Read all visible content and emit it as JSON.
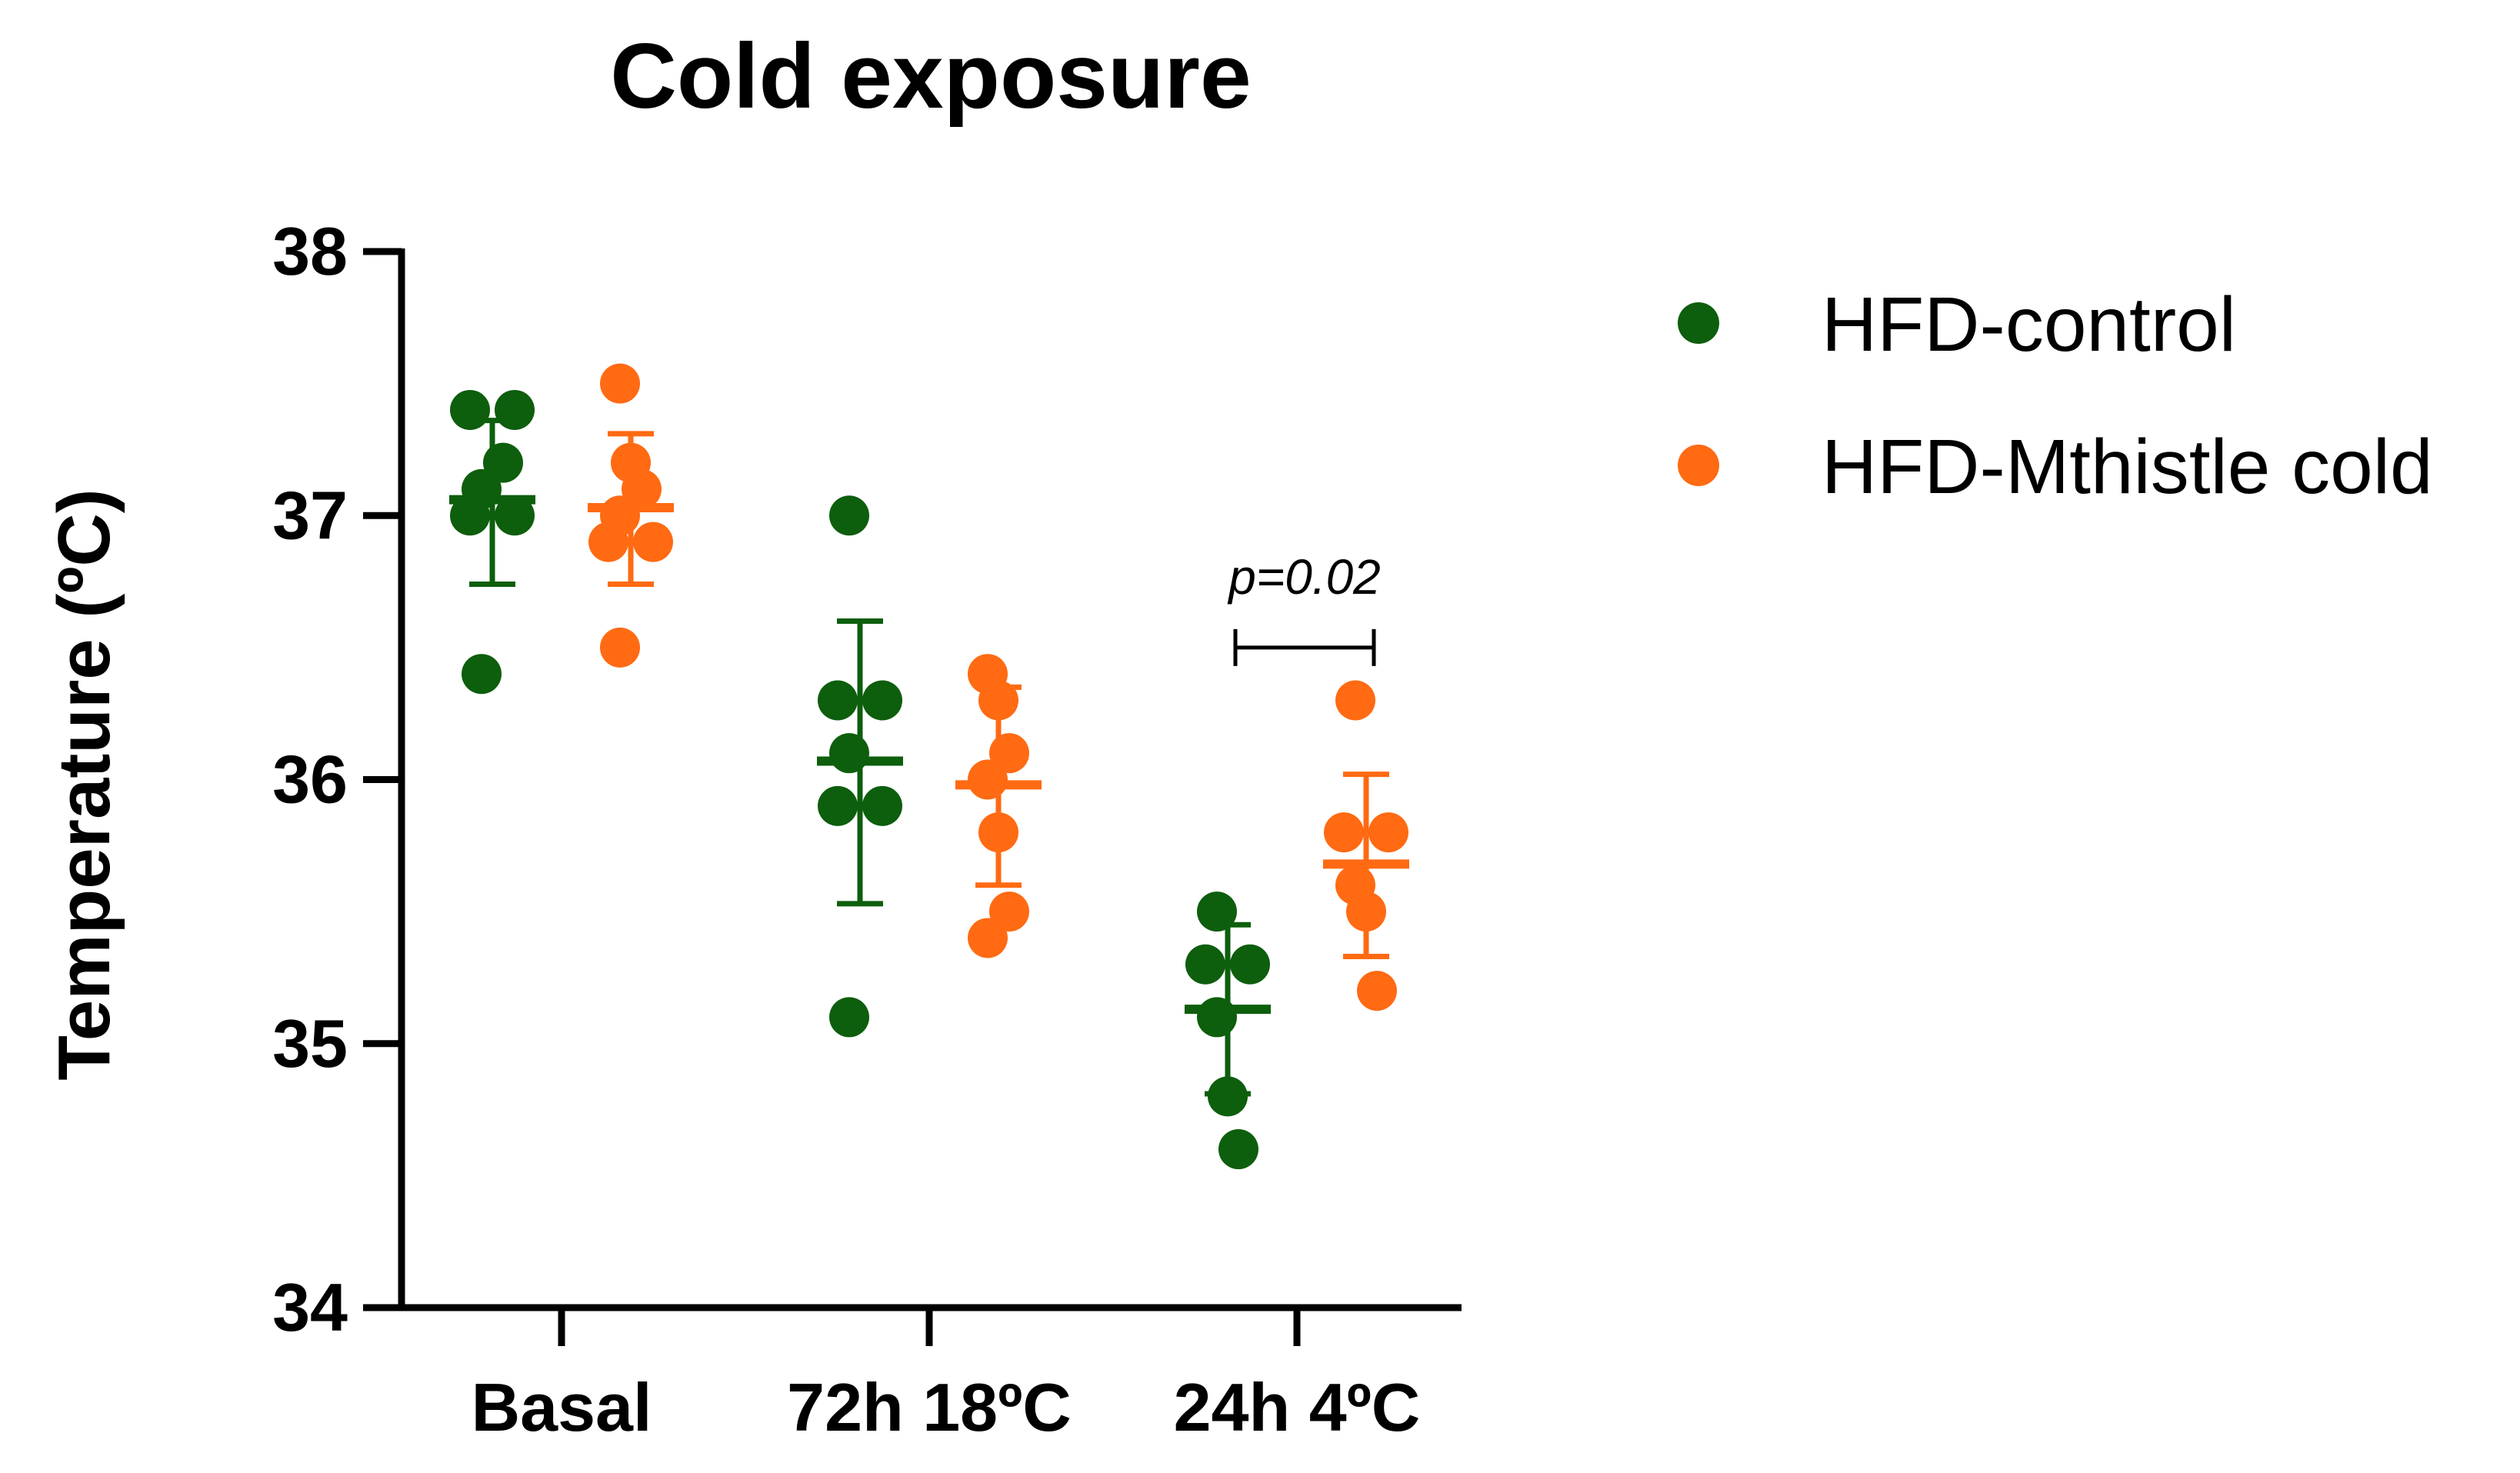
{
  "chart_data": {
    "type": "scatter",
    "title": "Cold exposure",
    "xlabel": "",
    "ylabel": "Temperature (ºC)",
    "ylim": [
      34,
      38
    ],
    "yticks": [
      34,
      35,
      36,
      37,
      38
    ],
    "categories": [
      "Basal",
      "72h 18ºC",
      "24h 4ºC"
    ],
    "legend_position": "top-right",
    "series": [
      {
        "name": "HFD-control",
        "color": "#0d5e0d",
        "points": [
          [
            37.4,
            37.4,
            37.2,
            37.1,
            37.0,
            37.0,
            36.4
          ],
          [
            37.0,
            36.3,
            36.3,
            36.1,
            35.9,
            35.9,
            35.1
          ],
          [
            35.5,
            35.3,
            35.3,
            35.1,
            34.8,
            34.6
          ]
        ],
        "means": [
          37.06,
          36.07,
          35.13
        ],
        "err_upper": [
          37.36,
          36.6,
          35.45
        ],
        "err_lower": [
          36.74,
          35.53,
          34.81
        ]
      },
      {
        "name": "HFD-Mthistle cold",
        "color": "#ff6a13",
        "points": [
          [
            37.5,
            37.2,
            37.1,
            37.0,
            36.9,
            36.9,
            36.5
          ],
          [
            36.4,
            36.3,
            36.1,
            36.0,
            35.8,
            35.5,
            35.4
          ],
          [
            36.3,
            35.8,
            35.8,
            35.6,
            35.5,
            35.2
          ]
        ],
        "means": [
          37.03,
          35.98,
          35.68
        ],
        "err_upper": [
          37.31,
          36.35,
          36.02
        ],
        "err_lower": [
          36.74,
          35.6,
          35.33
        ]
      }
    ],
    "annotations": [
      {
        "text": "p=0.02",
        "category_index": 2,
        "y": 36.5
      }
    ]
  }
}
